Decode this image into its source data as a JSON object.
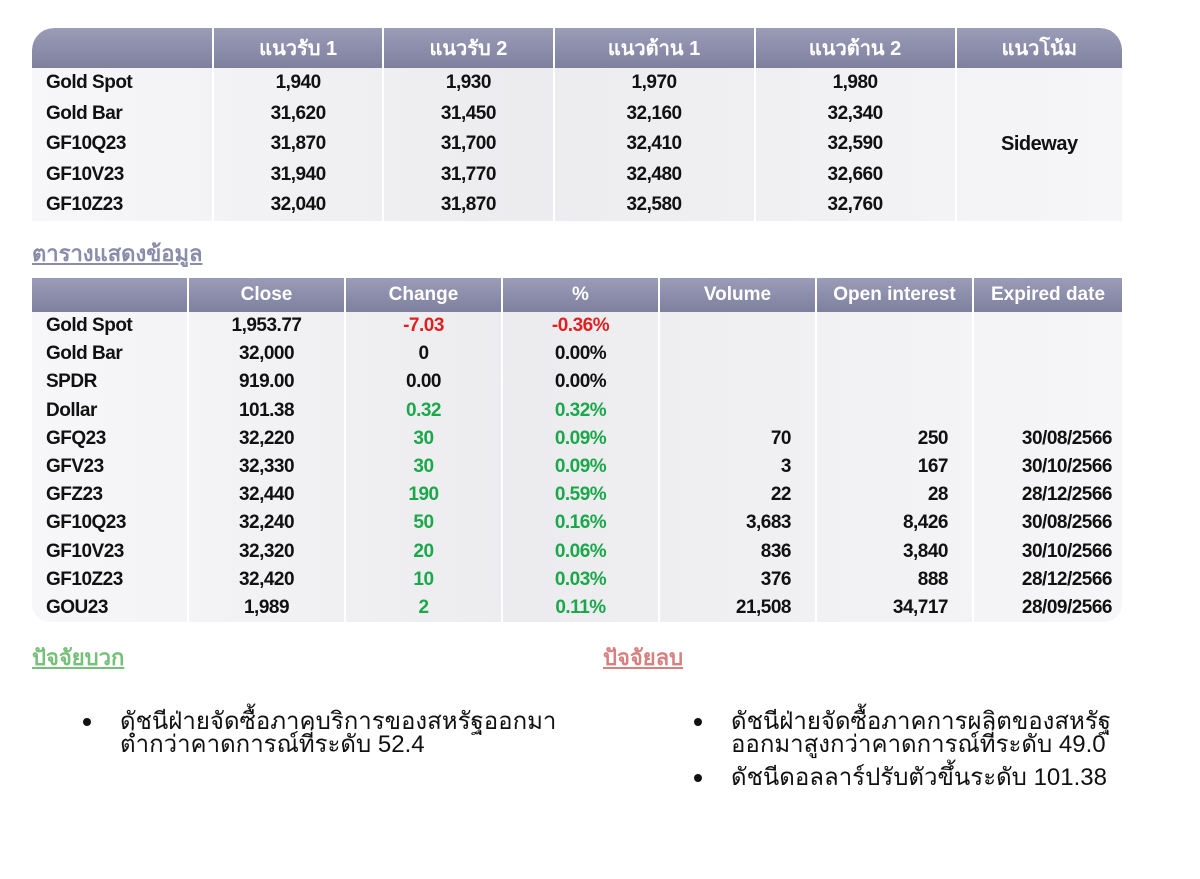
{
  "support_table": {
    "headers": [
      "",
      "แนวรับ 1",
      "แนวรับ 2",
      "แนวต้าน 1",
      "แนวต้าน 2",
      "แนวโน้ม"
    ],
    "rows": [
      {
        "name": "Gold Spot",
        "s1": "1,940",
        "s2": "1,930",
        "r1": "1,970",
        "r2": "1,980"
      },
      {
        "name": "Gold Bar",
        "s1": "31,620",
        "s2": "31,450",
        "r1": "32,160",
        "r2": "32,340"
      },
      {
        "name": "GF10Q23",
        "s1": "31,870",
        "s2": "31,700",
        "r1": "32,410",
        "r2": "32,590"
      },
      {
        "name": "GF10V23",
        "s1": "31,940",
        "s2": "31,770",
        "r1": "32,480",
        "r2": "32,660"
      },
      {
        "name": "GF10Z23",
        "s1": "32,040",
        "s2": "31,870",
        "r1": "32,580",
        "r2": "32,760"
      }
    ],
    "trend": "Sideway"
  },
  "table_heading": "ตารางแสดงข้อมูล",
  "market_table": {
    "headers": [
      "",
      "Close",
      "Change",
      "%",
      "Volume",
      "Open interest",
      "Expired date"
    ],
    "rows": [
      {
        "name": "Gold Spot",
        "close": "1,953.77",
        "change": "-7.03",
        "pct": "-0.36%",
        "volume": "",
        "oi": "",
        "expiry": "",
        "tone": "neg"
      },
      {
        "name": "Gold Bar",
        "close": "32,000",
        "change": "0",
        "pct": "0.00%",
        "volume": "",
        "oi": "",
        "expiry": "",
        "tone": "flat"
      },
      {
        "name": "SPDR",
        "close": "919.00",
        "change": "0.00",
        "pct": "0.00%",
        "volume": "",
        "oi": "",
        "expiry": "",
        "tone": "flat"
      },
      {
        "name": "Dollar",
        "close": "101.38",
        "change": "0.32",
        "pct": "0.32%",
        "volume": "",
        "oi": "",
        "expiry": "",
        "tone": "pos"
      },
      {
        "name": "GFQ23",
        "close": "32,220",
        "change": "30",
        "pct": "0.09%",
        "volume": "70",
        "oi": "250",
        "expiry": "30/08/2566",
        "tone": "pos"
      },
      {
        "name": "GFV23",
        "close": "32,330",
        "change": "30",
        "pct": "0.09%",
        "volume": "3",
        "oi": "167",
        "expiry": "30/10/2566",
        "tone": "pos"
      },
      {
        "name": "GFZ23",
        "close": "32,440",
        "change": "190",
        "pct": "0.59%",
        "volume": "22",
        "oi": "28",
        "expiry": "28/12/2566",
        "tone": "pos"
      },
      {
        "name": "GF10Q23",
        "close": "32,240",
        "change": "50",
        "pct": "0.16%",
        "volume": "3,683",
        "oi": "8,426",
        "expiry": "30/08/2566",
        "tone": "pos"
      },
      {
        "name": "GF10V23",
        "close": "32,320",
        "change": "20",
        "pct": "0.06%",
        "volume": "836",
        "oi": "3,840",
        "expiry": "30/10/2566",
        "tone": "pos"
      },
      {
        "name": "GF10Z23",
        "close": "32,420",
        "change": "10",
        "pct": "0.03%",
        "volume": "376",
        "oi": "888",
        "expiry": "28/12/2566",
        "tone": "pos"
      },
      {
        "name": "GOU23",
        "close": "1,989",
        "change": "2",
        "pct": "0.11%",
        "volume": "21,508",
        "oi": "34,717",
        "expiry": "28/09/2566",
        "tone": "pos"
      }
    ]
  },
  "positive_factors": {
    "heading": "ปัจจัยบวก",
    "items": [
      "ดัชนีฝ่ายจัดซื้อภาคบริการของสหรัฐออกมาต่ำกว่าคาดการณ์ที่ระดับ 52.4"
    ]
  },
  "negative_factors": {
    "heading": "ปัจจัยลบ",
    "items": [
      "ดัชนีฝ่ายจัดซื้อภาคการผลิตของสหรัฐออกมาสูงกว่าคาดการณ์ที่ระดับ 49.0",
      "ดัชนีดอลลาร์ปรับตัวขึ้นระดับ 101.38"
    ]
  },
  "colors": {
    "header": "#8e90ac",
    "negative": "#e02020",
    "positive": "#1aa84a",
    "positive_heading": "#76c07a",
    "negative_heading": "#d78080"
  }
}
